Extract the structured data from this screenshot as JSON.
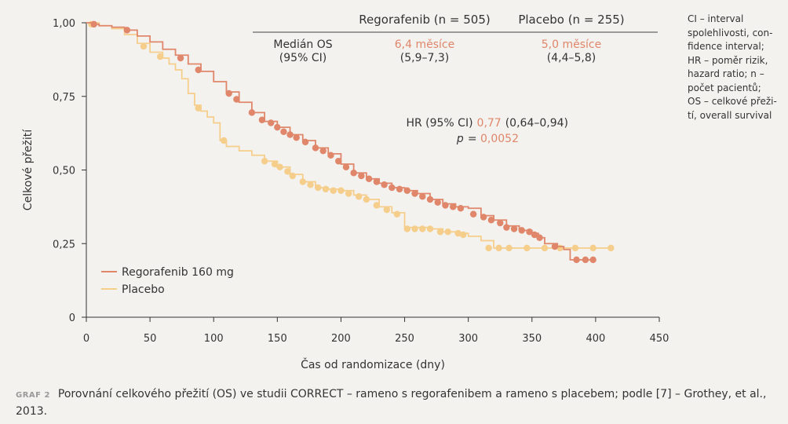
{
  "chart_data": {
    "type": "line",
    "xlabel": "Čas od randomizace (dny)",
    "ylabel": "Celkové přežití",
    "xlim": [
      0,
      450
    ],
    "ylim": [
      0,
      1
    ],
    "x_ticks": [
      "0",
      "50",
      "100",
      "150",
      "200",
      "250",
      "300",
      "350",
      "400",
      "450"
    ],
    "y_ticks": [
      "0",
      "0,25",
      "0,50",
      "0,75",
      "1,00"
    ],
    "series": [
      {
        "name": "Regorafenib 160 mg",
        "color": "#e0866a",
        "points": [
          [
            0,
            1.0
          ],
          [
            5,
            0.995
          ],
          [
            10,
            0.99
          ],
          [
            20,
            0.985
          ],
          [
            30,
            0.975
          ],
          [
            40,
            0.955
          ],
          [
            50,
            0.935
          ],
          [
            60,
            0.91
          ],
          [
            70,
            0.89
          ],
          [
            80,
            0.86
          ],
          [
            90,
            0.835
          ],
          [
            100,
            0.8
          ],
          [
            110,
            0.765
          ],
          [
            120,
            0.73
          ],
          [
            130,
            0.695
          ],
          [
            140,
            0.665
          ],
          [
            150,
            0.645
          ],
          [
            160,
            0.62
          ],
          [
            170,
            0.6
          ],
          [
            180,
            0.575
          ],
          [
            190,
            0.555
          ],
          [
            200,
            0.52
          ],
          [
            210,
            0.49
          ],
          [
            220,
            0.47
          ],
          [
            230,
            0.455
          ],
          [
            240,
            0.44
          ],
          [
            250,
            0.43
          ],
          [
            260,
            0.42
          ],
          [
            270,
            0.4
          ],
          [
            280,
            0.385
          ],
          [
            290,
            0.375
          ],
          [
            300,
            0.37
          ],
          [
            310,
            0.345
          ],
          [
            320,
            0.33
          ],
          [
            330,
            0.31
          ],
          [
            340,
            0.295
          ],
          [
            350,
            0.285
          ],
          [
            355,
            0.27
          ],
          [
            360,
            0.25
          ],
          [
            370,
            0.24
          ],
          [
            375,
            0.23
          ],
          [
            380,
            0.195
          ],
          [
            400,
            0.195
          ]
        ],
        "censored": [
          [
            6,
            0.995
          ],
          [
            32,
            0.975
          ],
          [
            74,
            0.88
          ],
          [
            88,
            0.84
          ],
          [
            112,
            0.76
          ],
          [
            118,
            0.74
          ],
          [
            130,
            0.695
          ],
          [
            138,
            0.67
          ],
          [
            145,
            0.66
          ],
          [
            150,
            0.645
          ],
          [
            155,
            0.63
          ],
          [
            160,
            0.62
          ],
          [
            165,
            0.61
          ],
          [
            172,
            0.595
          ],
          [
            180,
            0.575
          ],
          [
            186,
            0.565
          ],
          [
            192,
            0.55
          ],
          [
            198,
            0.53
          ],
          [
            204,
            0.51
          ],
          [
            210,
            0.49
          ],
          [
            216,
            0.48
          ],
          [
            222,
            0.47
          ],
          [
            228,
            0.46
          ],
          [
            234,
            0.45
          ],
          [
            240,
            0.44
          ],
          [
            246,
            0.435
          ],
          [
            252,
            0.43
          ],
          [
            258,
            0.42
          ],
          [
            264,
            0.41
          ],
          [
            270,
            0.4
          ],
          [
            276,
            0.39
          ],
          [
            282,
            0.38
          ],
          [
            288,
            0.375
          ],
          [
            294,
            0.37
          ],
          [
            304,
            0.35
          ],
          [
            312,
            0.34
          ],
          [
            318,
            0.33
          ],
          [
            325,
            0.32
          ],
          [
            330,
            0.305
          ],
          [
            336,
            0.3
          ],
          [
            342,
            0.295
          ],
          [
            348,
            0.29
          ],
          [
            352,
            0.28
          ],
          [
            356,
            0.27
          ],
          [
            368,
            0.24
          ],
          [
            385,
            0.195
          ],
          [
            392,
            0.195
          ],
          [
            398,
            0.195
          ]
        ]
      },
      {
        "name": "Placebo",
        "color": "#f6ce8c",
        "points": [
          [
            0,
            1.0
          ],
          [
            10,
            0.99
          ],
          [
            20,
            0.98
          ],
          [
            30,
            0.96
          ],
          [
            40,
            0.93
          ],
          [
            50,
            0.9
          ],
          [
            60,
            0.88
          ],
          [
            65,
            0.86
          ],
          [
            70,
            0.84
          ],
          [
            75,
            0.81
          ],
          [
            80,
            0.76
          ],
          [
            85,
            0.72
          ],
          [
            90,
            0.7
          ],
          [
            95,
            0.68
          ],
          [
            100,
            0.66
          ],
          [
            105,
            0.6
          ],
          [
            110,
            0.58
          ],
          [
            120,
            0.565
          ],
          [
            130,
            0.55
          ],
          [
            140,
            0.53
          ],
          [
            150,
            0.51
          ],
          [
            160,
            0.485
          ],
          [
            170,
            0.46
          ],
          [
            180,
            0.44
          ],
          [
            190,
            0.435
          ],
          [
            200,
            0.43
          ],
          [
            210,
            0.415
          ],
          [
            220,
            0.4
          ],
          [
            230,
            0.375
          ],
          [
            240,
            0.355
          ],
          [
            250,
            0.305
          ],
          [
            270,
            0.3
          ],
          [
            280,
            0.29
          ],
          [
            290,
            0.285
          ],
          [
            300,
            0.275
          ],
          [
            310,
            0.26
          ],
          [
            320,
            0.235
          ],
          [
            350,
            0.235
          ],
          [
            375,
            0.235
          ],
          [
            410,
            0.235
          ]
        ],
        "censored": [
          [
            4,
            0.995
          ],
          [
            45,
            0.92
          ],
          [
            58,
            0.885
          ],
          [
            88,
            0.71
          ],
          [
            108,
            0.6
          ],
          [
            140,
            0.53
          ],
          [
            148,
            0.52
          ],
          [
            152,
            0.51
          ],
          [
            158,
            0.495
          ],
          [
            162,
            0.48
          ],
          [
            170,
            0.46
          ],
          [
            176,
            0.45
          ],
          [
            182,
            0.44
          ],
          [
            188,
            0.435
          ],
          [
            194,
            0.43
          ],
          [
            200,
            0.43
          ],
          [
            206,
            0.42
          ],
          [
            214,
            0.41
          ],
          [
            220,
            0.4
          ],
          [
            228,
            0.38
          ],
          [
            236,
            0.365
          ],
          [
            244,
            0.35
          ],
          [
            252,
            0.3
          ],
          [
            258,
            0.3
          ],
          [
            264,
            0.3
          ],
          [
            270,
            0.3
          ],
          [
            278,
            0.29
          ],
          [
            284,
            0.29
          ],
          [
            292,
            0.285
          ],
          [
            296,
            0.28
          ],
          [
            316,
            0.235
          ],
          [
            324,
            0.235
          ],
          [
            332,
            0.235
          ],
          [
            346,
            0.235
          ],
          [
            360,
            0.235
          ],
          [
            372,
            0.235
          ],
          [
            384,
            0.235
          ],
          [
            398,
            0.235
          ],
          [
            412,
            0.235
          ]
        ]
      }
    ],
    "legend_position": "bottom-left"
  },
  "stats_table": {
    "col_reg": "Regorafenib (n = 505)",
    "col_plac": "Placebo (n = 255)",
    "row_label_1": "Medián OS",
    "row_label_2": "(95% CI)",
    "reg_median": "6,4 měsíce",
    "reg_ci": "(5,9–7,3)",
    "plac_median": "5,0 měsíce",
    "plac_ci": "(4,4–5,8)"
  },
  "hr": {
    "prefix": "HR (95% CI)",
    "value": "0,77",
    "ci": "(0,64–0,94)",
    "p_label": "p",
    "p_eq": "= ",
    "p_value": "0,0052"
  },
  "legend": {
    "reg": "Regorafenib 160 mg",
    "plac": "Placebo"
  },
  "side_note": {
    "line1": "CI – interval",
    "line2": "spolehlivosti, con-",
    "line3": "fidence interval;",
    "line4": "HR – poměr rizik,",
    "line5": "hazard ratio; n –",
    "line6": "počet pacientů;",
    "line7": "OS – celkové přeži-",
    "line8": "tí, overall survival"
  },
  "caption": {
    "label": "GRAF 2",
    "text": "Porovnání celkového přežití (OS) ve studii CORRECT – rameno s regorafenibem a rameno s placebem; podle [7] – Grothey, et al., 2013."
  },
  "colors": {
    "regorafenib": "#e0866a",
    "placebo": "#f6ce8c",
    "accent_text": "#e0866a",
    "background": "#f3f2ef"
  }
}
